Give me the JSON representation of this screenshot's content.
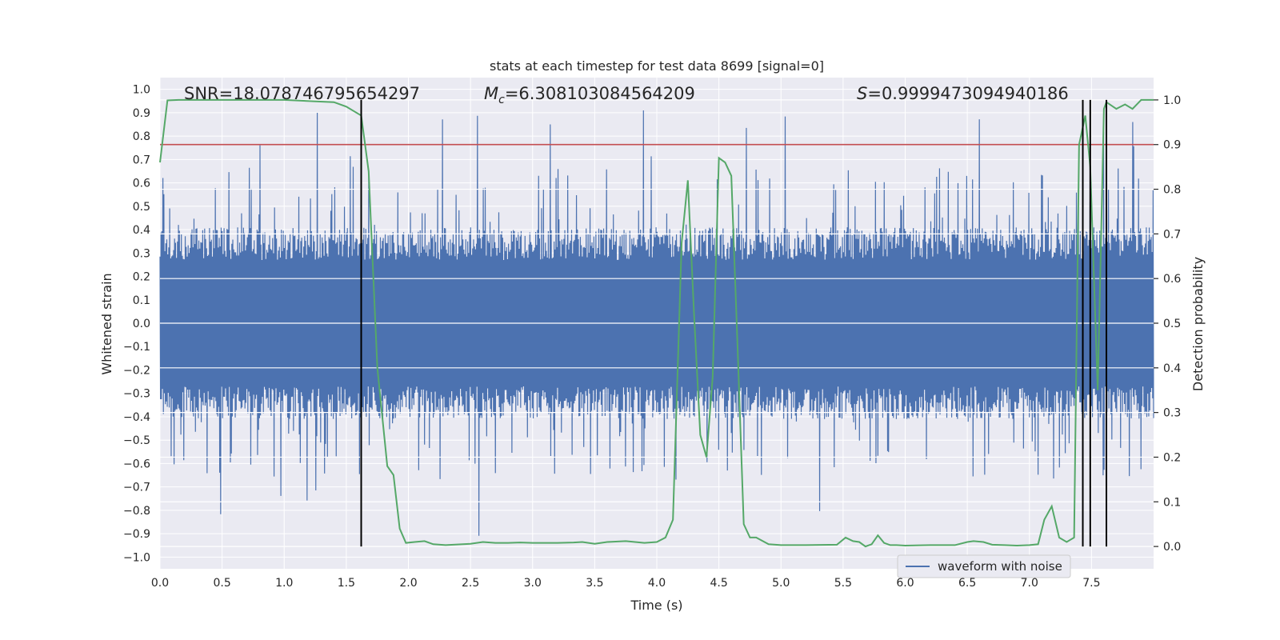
{
  "chart_data": {
    "type": "line",
    "title": "stats at each timestep for test data 8699 [signal=0]",
    "xlabel": "Time (s)",
    "ylabel_left": "Whitened strain",
    "ylabel_right": "Detection probability",
    "xlim": [
      0,
      8
    ],
    "ylim_left": [
      -1.05,
      1.05
    ],
    "ylim_right": [
      -0.05,
      1.05
    ],
    "x_ticks": [
      0.0,
      0.5,
      1.0,
      1.5,
      2.0,
      2.5,
      3.0,
      3.5,
      4.0,
      4.5,
      5.0,
      5.5,
      6.0,
      6.5,
      7.0,
      7.5
    ],
    "x_tick_labels": [
      "0.0",
      "0.5",
      "1.0",
      "1.5",
      "2.0",
      "2.5",
      "3.0",
      "3.5",
      "4.0",
      "4.5",
      "5.0",
      "5.5",
      "6.0",
      "6.5",
      "7.0",
      "7.5"
    ],
    "y_left_ticks": [
      -1.0,
      -0.9,
      -0.8,
      -0.7,
      -0.6,
      -0.5,
      -0.4,
      -0.3,
      -0.2,
      -0.1,
      0.0,
      0.1,
      0.2,
      0.3,
      0.4,
      0.5,
      0.6,
      0.7,
      0.8,
      0.9,
      1.0
    ],
    "y_left_tick_labels": [
      "−1.0",
      "−0.9",
      "−0.8",
      "−0.7",
      "−0.6",
      "−0.5",
      "−0.4",
      "−0.3",
      "−0.2",
      "−0.1",
      "0.0",
      "0.1",
      "0.2",
      "0.3",
      "0.4",
      "0.5",
      "0.6",
      "0.7",
      "0.8",
      "0.9",
      "1.0"
    ],
    "y_right_ticks": [
      0.0,
      0.1,
      0.2,
      0.3,
      0.4,
      0.5,
      0.6,
      0.7,
      0.8,
      0.9,
      1.0
    ],
    "y_right_tick_labels": [
      "0.0",
      "0.1",
      "0.2",
      "0.3",
      "0.4",
      "0.5",
      "0.6",
      "0.7",
      "0.8",
      "0.9",
      "1.0"
    ],
    "annotations": {
      "snr": "SNR=18.078746795654297",
      "mc_symbol": "M",
      "mc_sub": "c",
      "mc_value": "=6.308103084564209",
      "s_symbol": "S",
      "s_value": "=0.9999473094940186"
    },
    "threshold": {
      "value": 0.9,
      "axis": "right",
      "color": "#c44e52"
    },
    "vertical_lines": [
      1.62,
      7.43,
      7.49,
      7.62
    ],
    "legend": {
      "label": "waveform with noise",
      "position": "lower-right"
    },
    "waveform": {
      "name": "waveform with noise",
      "color": "#4c72b0",
      "x_range": [
        0,
        8
      ],
      "samples": 2048,
      "core_amplitude": 0.27,
      "peak_max": 0.92,
      "trough_min": -0.93
    },
    "series": [
      {
        "name": "detection probability",
        "color": "#55a868",
        "axis": "right",
        "x": [
          0.0,
          0.06,
          0.15,
          0.5,
          1.0,
          1.4,
          1.5,
          1.62,
          1.68,
          1.75,
          1.83,
          1.88,
          1.93,
          1.98,
          2.05,
          2.13,
          2.2,
          2.3,
          2.5,
          2.6,
          2.7,
          2.8,
          2.9,
          3.0,
          3.2,
          3.33,
          3.4,
          3.5,
          3.6,
          3.75,
          3.9,
          4.0,
          4.07,
          4.13,
          4.2,
          4.25,
          4.3,
          4.35,
          4.4,
          4.45,
          4.5,
          4.55,
          4.6,
          4.65,
          4.7,
          4.75,
          4.8,
          4.9,
          5.0,
          5.2,
          5.45,
          5.52,
          5.58,
          5.63,
          5.68,
          5.73,
          5.78,
          5.83,
          5.88,
          5.93,
          6.0,
          6.2,
          6.4,
          6.5,
          6.55,
          6.63,
          6.7,
          6.8,
          6.9,
          7.0,
          7.07,
          7.12,
          7.18,
          7.24,
          7.3,
          7.36,
          7.4,
          7.45,
          7.49,
          7.55,
          7.6,
          7.62,
          7.7,
          7.77,
          7.83,
          7.9,
          8.0
        ],
        "values": [
          0.86,
          0.999,
          1.0,
          1.0,
          1.0,
          0.995,
          0.985,
          0.965,
          0.84,
          0.4,
          0.18,
          0.16,
          0.04,
          0.008,
          0.01,
          0.012,
          0.005,
          0.003,
          0.006,
          0.01,
          0.008,
          0.008,
          0.009,
          0.008,
          0.008,
          0.009,
          0.01,
          0.006,
          0.01,
          0.012,
          0.008,
          0.01,
          0.02,
          0.06,
          0.68,
          0.82,
          0.52,
          0.25,
          0.2,
          0.38,
          0.87,
          0.86,
          0.83,
          0.45,
          0.05,
          0.02,
          0.02,
          0.005,
          0.003,
          0.003,
          0.004,
          0.02,
          0.012,
          0.01,
          0.0,
          0.005,
          0.025,
          0.008,
          0.003,
          0.003,
          0.002,
          0.003,
          0.003,
          0.01,
          0.012,
          0.01,
          0.004,
          0.003,
          0.002,
          0.003,
          0.005,
          0.06,
          0.09,
          0.02,
          0.01,
          0.02,
          0.9,
          0.965,
          0.85,
          0.35,
          0.98,
          0.995,
          0.98,
          0.99,
          0.98,
          1.0,
          1.0
        ]
      }
    ]
  }
}
